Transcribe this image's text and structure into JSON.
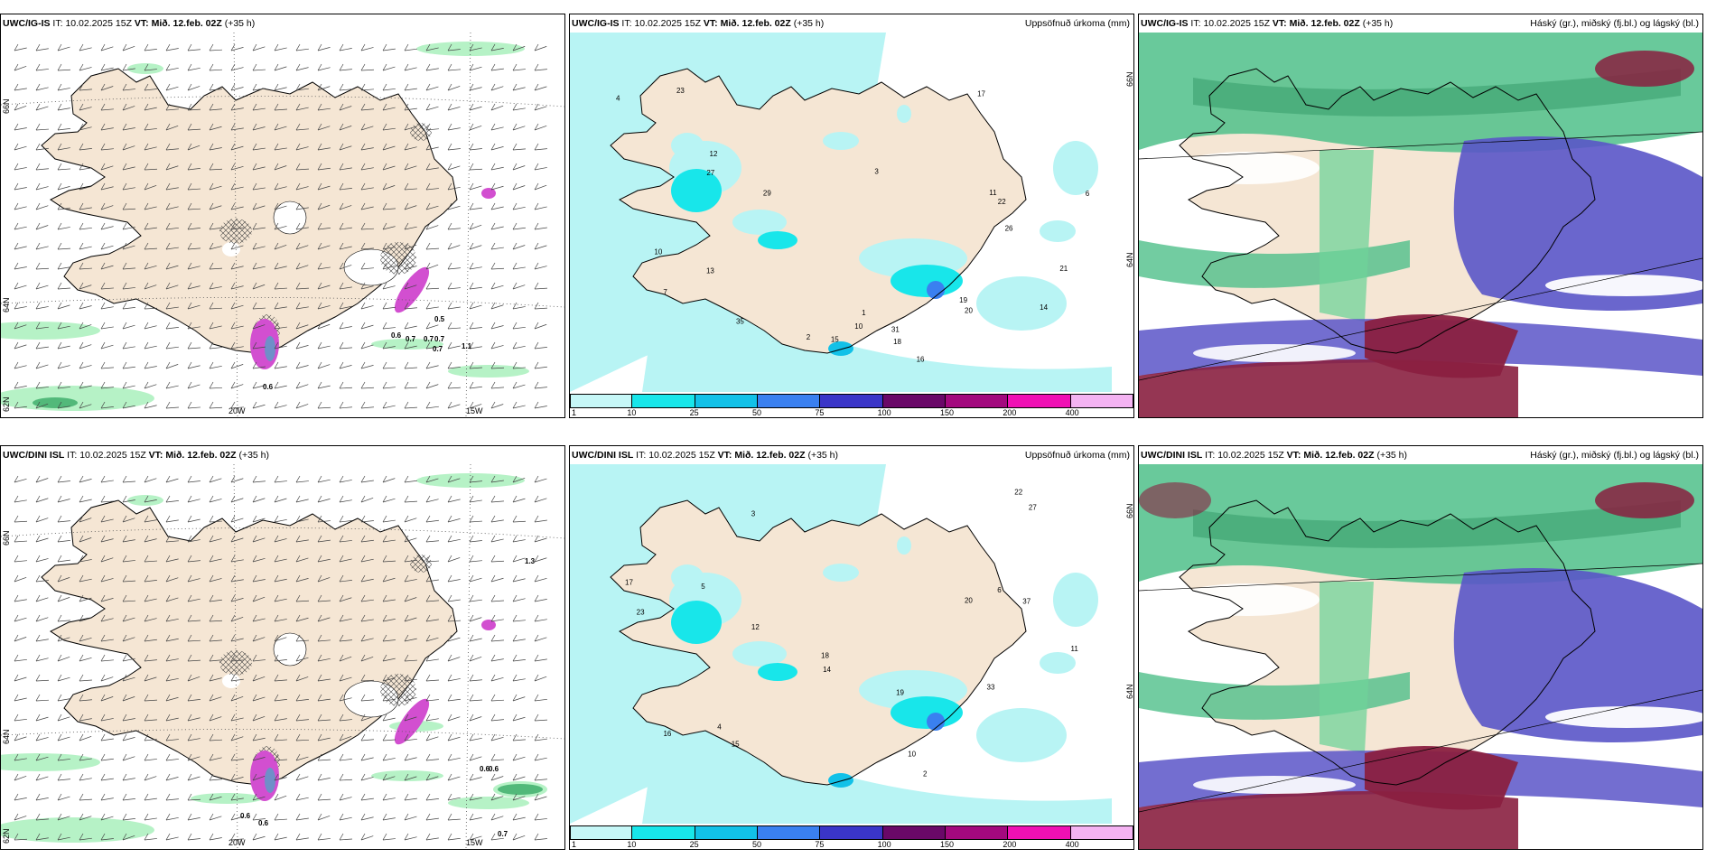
{
  "panels": [
    {
      "model": "UWC/IG-IS",
      "it_label": "IT:",
      "it_value": "10.02.2025 15Z",
      "vt_label": "VT:",
      "vt_value": "Mið. 12.feb. 02Z",
      "lead": "(+35 h)",
      "right_title": "",
      "kind": "wind"
    },
    {
      "model": "UWC/IG-IS",
      "it_label": "IT:",
      "it_value": "10.02.2025 15Z",
      "vt_label": "VT:",
      "vt_value": "Mið. 12.feb. 02Z",
      "lead": "(+35 h)",
      "right_title": "Uppsöfnuð úrkoma (mm)",
      "kind": "precip"
    },
    {
      "model": "UWC/IG-IS",
      "it_label": "IT:",
      "it_value": "10.02.2025 15Z",
      "vt_label": "VT:",
      "vt_value": "Mið. 12.feb. 02Z",
      "lead": "(+35 h)",
      "right_title": "Háský (gr.), miðský (fj.bl.) og lágský (bl.)",
      "kind": "cloud"
    },
    {
      "model": "UWC/DINI ISL",
      "it_label": "IT:",
      "it_value": "10.02.2025 15Z",
      "vt_label": "VT:",
      "vt_value": "Mið. 12.feb. 02Z",
      "lead": "(+35 h)",
      "right_title": "",
      "kind": "wind"
    },
    {
      "model": "UWC/DINI ISL",
      "it_label": "IT:",
      "it_value": "10.02.2025 15Z",
      "vt_label": "VT:",
      "vt_value": "Mið. 12.feb. 02Z",
      "lead": "(+35 h)",
      "right_title": "Uppsöfnuð úrkoma (mm)",
      "kind": "precip"
    },
    {
      "model": "UWC/DINI ISL",
      "it_label": "IT:",
      "it_value": "10.02.2025 15Z",
      "vt_label": "VT:",
      "vt_value": "Mið. 12.feb. 02Z",
      "lead": "(+35 h)",
      "right_title": "Háský (gr.), miðský (fj.bl.) og lágský (bl.)",
      "kind": "cloud"
    }
  ],
  "axis_labels": {
    "lat66": "66N",
    "lat64": "64N",
    "lat62": "62N",
    "lon20": "20W",
    "lon15": "15W"
  },
  "precip_colorbar": {
    "levels": [
      "1",
      "10",
      "25",
      "50",
      "75",
      "100",
      "150",
      "200",
      "400"
    ],
    "colors": [
      "#c6f7f7",
      "#18e6ea",
      "#12c1e8",
      "#3a80f0",
      "#3a35c8",
      "#6a0868",
      "#a3097e",
      "#ef10b4",
      "#f4b3f2"
    ]
  },
  "wind_panel_values": {
    "ig": [
      "0.5",
      "0.6",
      "0.7",
      "0.7",
      "0.7",
      "0.7",
      "1.1",
      "0.6"
    ],
    "dini": [
      "1.3",
      "0.6",
      "0.6",
      "0.6",
      "0.6",
      "0.7"
    ]
  },
  "precip_values": {
    "ig": [
      "2",
      "1",
      "3",
      "4",
      "6",
      "7",
      "10",
      "10",
      "11",
      "12",
      "13",
      "14",
      "15",
      "16",
      "17",
      "18",
      "19",
      "20",
      "21",
      "22",
      "23",
      "26",
      "27",
      "29",
      "31",
      "35"
    ],
    "dini": [
      "2",
      "3",
      "4",
      "5",
      "6",
      "10",
      "11",
      "12",
      "14",
      "15",
      "16",
      "17",
      "18",
      "19",
      "20",
      "22",
      "23",
      "27",
      "33",
      "37"
    ]
  },
  "colors": {
    "land": "#f5e6d4",
    "green": "#74d6a4",
    "darkgreen": "#3aa06e",
    "purple": "#5a55c8",
    "maroon": "#8a2040",
    "lightcyan": "#b8f4f4",
    "pink": "#d24fd0"
  }
}
